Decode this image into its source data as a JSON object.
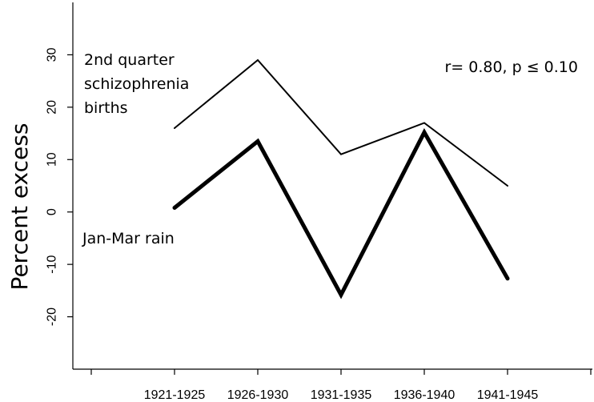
{
  "chart_data": {
    "type": "line",
    "title": "",
    "xlabel": "",
    "ylabel": "Percent excess",
    "categories": [
      "1921-1925",
      "1926-1930",
      "1931-1935",
      "1936-1940",
      "1941-1945"
    ],
    "ylim": [
      -30,
      40
    ],
    "yticks": [
      -20,
      -10,
      0,
      10,
      20,
      30
    ],
    "grid": false,
    "series": [
      {
        "name": "2nd quarter schizophrenia births",
        "values": [
          16,
          29,
          11,
          17,
          5
        ],
        "style": "thin",
        "color": "#000000"
      },
      {
        "name": "Jan-Mar rain",
        "values": [
          0.8,
          13.5,
          -15.8,
          15.2,
          -12.7
        ],
        "style": "thick",
        "color": "#000000"
      }
    ],
    "annotations": {
      "series1_label_lines": [
        "2nd quarter",
        "schizophrenia",
        "births"
      ],
      "series2_label": "Jan-Mar rain",
      "stat": "r= 0.80, p ≤ 0.10"
    }
  }
}
